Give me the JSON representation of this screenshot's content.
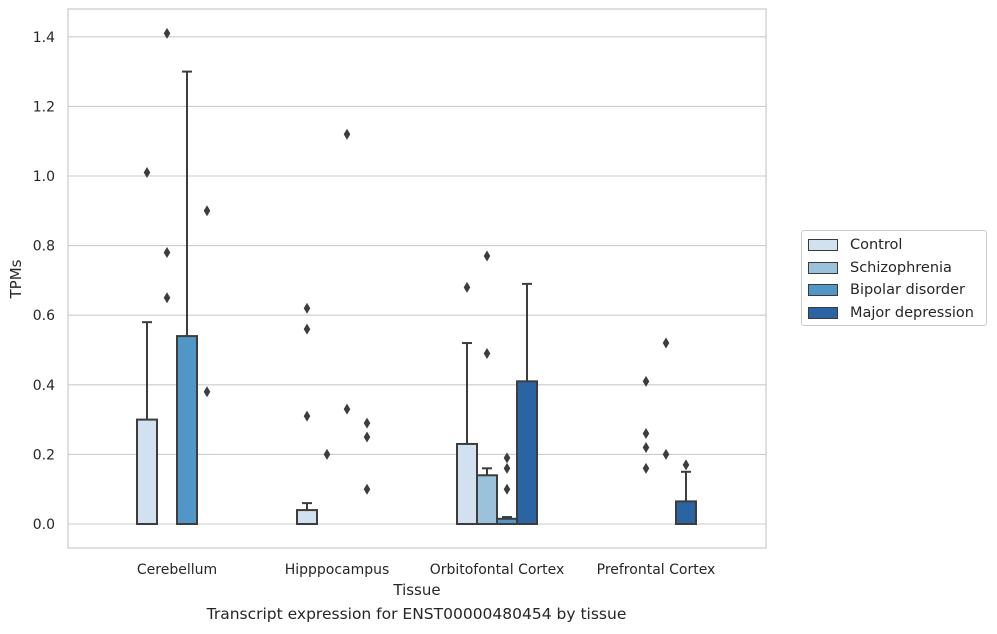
{
  "chart_data": {
    "type": "bar",
    "xlabel": "Tissue",
    "ylabel": "TPMs",
    "caption": "Transcript expression for ENST00000480454 by tissue",
    "ylim": [
      -0.07,
      1.48
    ],
    "yticks": [
      0.0,
      0.2,
      0.4,
      0.6,
      0.8,
      1.0,
      1.2,
      1.4
    ],
    "ytick_labels": [
      "0.0",
      "0.2",
      "0.4",
      "0.6",
      "0.8",
      "1.0",
      "1.2",
      "1.4"
    ],
    "grid": true,
    "legend_position": "right",
    "categories": [
      "Cerebellum",
      "Hipppocampus",
      "Orbitofontal Cortex",
      "Prefrontal Cortex"
    ],
    "series": [
      {
        "name": "Control",
        "color": "#d2e1ef",
        "values": [
          0.3,
          0.04,
          0.23,
          0.0
        ],
        "error_upper": [
          0.58,
          0.06,
          0.52,
          null
        ],
        "outliers": [
          [
            1.01
          ],
          [
            0.62,
            0.56,
            0.31
          ],
          [
            0.68
          ],
          []
        ]
      },
      {
        "name": "Schizophrenia",
        "color": "#9bc2da",
        "values": [
          0.0,
          0.0,
          0.14,
          0.0
        ],
        "error_upper": [
          null,
          null,
          0.16,
          null
        ],
        "outliers": [
          [
            1.41,
            0.78,
            0.65
          ],
          [
            0.2
          ],
          [
            0.77,
            0.49
          ],
          [
            0.41,
            0.22,
            0.16,
            0.26
          ]
        ]
      },
      {
        "name": "Bipolar disorder",
        "color": "#5096c6",
        "values": [
          0.54,
          0.0,
          0.015,
          0.0
        ],
        "error_upper": [
          1.3,
          null,
          0.02,
          null
        ],
        "outliers": [
          [],
          [
            1.12,
            0.33
          ],
          [
            0.19,
            0.16,
            0.1
          ],
          [
            0.52,
            0.2
          ]
        ]
      },
      {
        "name": "Major depression",
        "color": "#2b64a2",
        "values": [
          0.0,
          0.0,
          0.41,
          0.065
        ],
        "error_upper": [
          null,
          null,
          0.69,
          0.15
        ],
        "outliers": [
          [
            0.9,
            0.38
          ],
          [
            0.29,
            0.25,
            0.1
          ],
          [],
          [
            0.17
          ]
        ]
      }
    ]
  }
}
